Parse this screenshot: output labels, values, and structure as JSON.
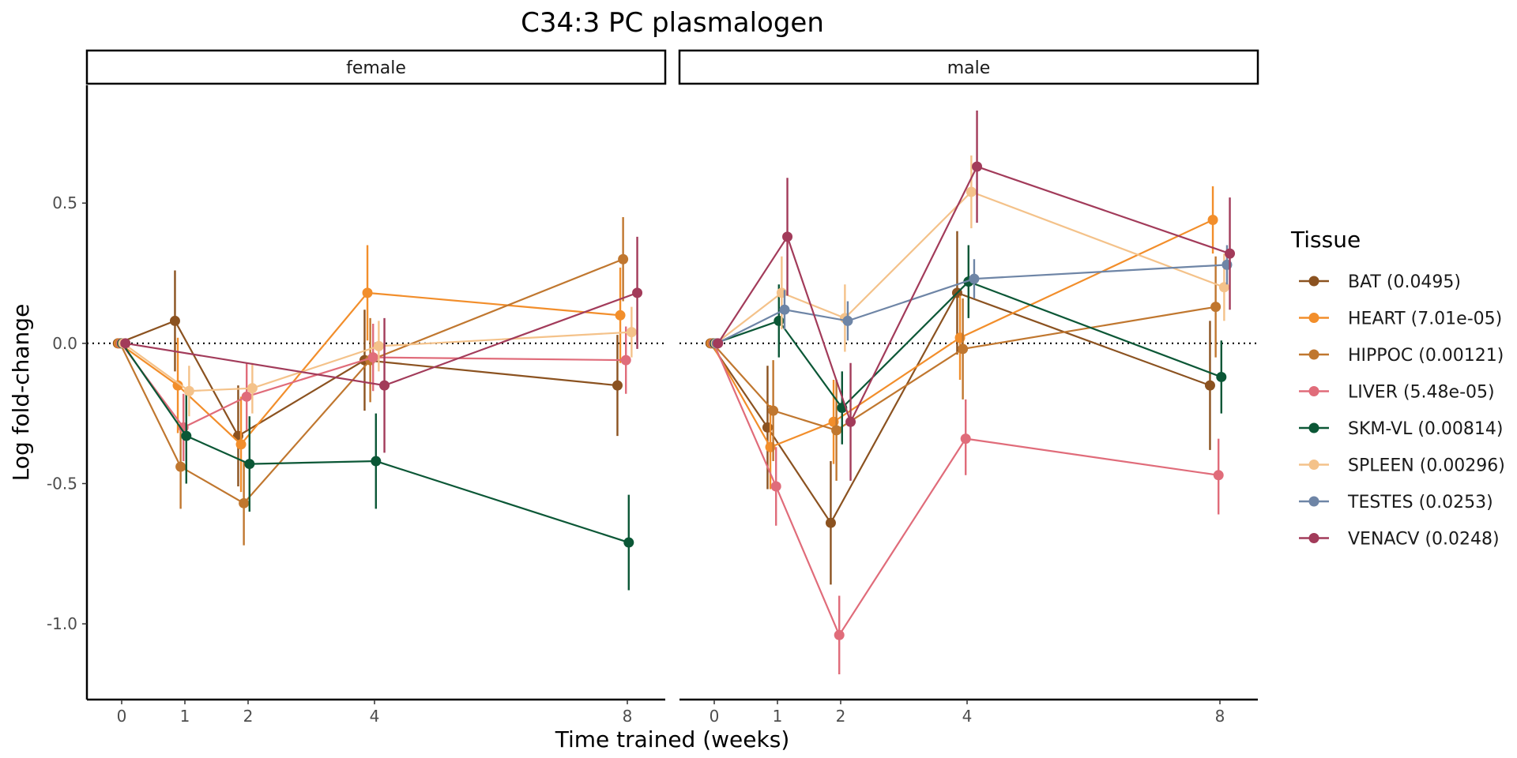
{
  "chart_data": {
    "type": "line",
    "title": "C34:3 PC plasmalogen",
    "xlabel": "Time trained (weeks)",
    "ylabel": "Log fold-change",
    "x_ticks": [
      0,
      1,
      2,
      4,
      8
    ],
    "y_ticks": [
      -1.0,
      -0.5,
      0.0,
      0.5
    ],
    "y_tick_labels": [
      "-1.0",
      "-0.5",
      "0.0",
      "0.5"
    ],
    "ylim": [
      -1.27,
      0.92
    ],
    "xlim": [
      -0.55,
      8.6
    ],
    "reference_line": 0,
    "legend_title": "Tissue",
    "legend_position": "right",
    "panels": [
      {
        "label": "female",
        "series": [
          {
            "name": "BAT (0.0495)",
            "color": "#8B5220",
            "x": [
              0,
              1,
              2,
              4,
              8
            ],
            "y": [
              0.0,
              0.08,
              -0.33,
              -0.06,
              -0.15
            ],
            "lo": [
              0.0,
              -0.1,
              -0.51,
              -0.24,
              -0.33
            ],
            "hi": [
              0.0,
              0.26,
              -0.15,
              0.12,
              0.03
            ]
          },
          {
            "name": "HEART (7.01e-05)",
            "color": "#F28E2B",
            "x": [
              0,
              1,
              2,
              4,
              8
            ],
            "y": [
              0.0,
              -0.15,
              -0.36,
              0.18,
              0.1
            ],
            "lo": [
              0.0,
              -0.32,
              -0.53,
              0.01,
              -0.07
            ],
            "hi": [
              0.0,
              0.02,
              -0.19,
              0.35,
              0.27
            ]
          },
          {
            "name": "HIPPOC (0.00121)",
            "color": "#C0772F",
            "x": [
              0,
              1,
              2,
              4,
              8
            ],
            "y": [
              0.0,
              -0.44,
              -0.57,
              -0.06,
              0.3
            ],
            "lo": [
              0.0,
              -0.59,
              -0.72,
              -0.21,
              0.15
            ],
            "hi": [
              0.0,
              -0.29,
              -0.42,
              0.09,
              0.45
            ]
          },
          {
            "name": "LIVER (5.48e-05)",
            "color": "#E06C7A",
            "x": [
              0,
              1,
              2,
              4,
              8
            ],
            "y": [
              0.0,
              -0.3,
              -0.19,
              -0.05,
              -0.06
            ],
            "lo": [
              0.0,
              -0.42,
              -0.31,
              -0.17,
              -0.18
            ],
            "hi": [
              0.0,
              -0.18,
              -0.07,
              0.07,
              0.06
            ]
          },
          {
            "name": "SKM-VL (0.00814)",
            "color": "#0B5736",
            "x": [
              0,
              1,
              2,
              4,
              8
            ],
            "y": [
              0.0,
              -0.33,
              -0.43,
              -0.42,
              -0.71
            ],
            "lo": [
              0.0,
              -0.5,
              -0.6,
              -0.59,
              -0.88
            ],
            "hi": [
              0.0,
              -0.16,
              -0.26,
              -0.25,
              -0.54
            ]
          },
          {
            "name": "SPLEEN (0.00296)",
            "color": "#F4C28A",
            "x": [
              0,
              1,
              2,
              4,
              8
            ],
            "y": [
              0.0,
              -0.17,
              -0.16,
              -0.01,
              0.04
            ],
            "lo": [
              0.0,
              -0.26,
              -0.25,
              -0.1,
              -0.05
            ],
            "hi": [
              0.0,
              -0.08,
              -0.07,
              0.08,
              0.13
            ]
          },
          {
            "name": "TESTES (0.0253)",
            "color": "#6E85A6",
            "x": [],
            "y": [],
            "lo": [],
            "hi": []
          },
          {
            "name": "VENACV (0.0248)",
            "color": "#A23B5A",
            "x": [
              0,
              4,
              8
            ],
            "y": [
              0.0,
              -0.15,
              0.18
            ],
            "lo": [
              0.0,
              -0.39,
              -0.02
            ],
            "hi": [
              0.0,
              0.09,
              0.38
            ]
          }
        ]
      },
      {
        "label": "male",
        "series": [
          {
            "name": "BAT (0.0495)",
            "color": "#8B5220",
            "x": [
              0,
              1,
              2,
              4,
              8
            ],
            "y": [
              0.0,
              -0.3,
              -0.64,
              0.18,
              -0.15
            ],
            "lo": [
              0.0,
              -0.52,
              -0.86,
              -0.04,
              -0.38
            ],
            "hi": [
              0.0,
              -0.08,
              -0.42,
              0.4,
              0.08
            ]
          },
          {
            "name": "HEART (7.01e-05)",
            "color": "#F28E2B",
            "x": [
              0,
              1,
              2,
              4,
              8
            ],
            "y": [
              0.0,
              -0.37,
              -0.28,
              0.02,
              0.44
            ],
            "lo": [
              0.0,
              -0.52,
              -0.43,
              -0.13,
              0.32
            ],
            "hi": [
              0.0,
              -0.22,
              -0.13,
              0.17,
              0.56
            ]
          },
          {
            "name": "HIPPOC (0.00121)",
            "color": "#C0772F",
            "x": [
              0,
              1,
              2,
              4,
              8
            ],
            "y": [
              0.0,
              -0.24,
              -0.31,
              -0.02,
              0.13
            ],
            "lo": [
              0.0,
              -0.42,
              -0.49,
              -0.2,
              -0.05
            ],
            "hi": [
              0.0,
              -0.06,
              -0.13,
              0.16,
              0.31
            ]
          },
          {
            "name": "LIVER (5.48e-05)",
            "color": "#E06C7A",
            "x": [
              0,
              1,
              2,
              4,
              8
            ],
            "y": [
              0.0,
              -0.51,
              -1.04,
              -0.34,
              -0.47
            ],
            "lo": [
              0.0,
              -0.65,
              -1.18,
              -0.47,
              -0.61
            ],
            "hi": [
              0.0,
              -0.37,
              -0.9,
              -0.2,
              -0.34
            ]
          },
          {
            "name": "SKM-VL (0.00814)",
            "color": "#0B5736",
            "x": [
              0,
              1,
              2,
              4,
              8
            ],
            "y": [
              0.0,
              0.08,
              -0.23,
              0.22,
              -0.12
            ],
            "lo": [
              0.0,
              -0.05,
              -0.36,
              0.09,
              -0.25
            ],
            "hi": [
              0.0,
              0.21,
              -0.1,
              0.35,
              0.01
            ]
          },
          {
            "name": "SPLEEN (0.00296)",
            "color": "#F4C28A",
            "x": [
              0,
              1,
              2,
              4,
              8
            ],
            "y": [
              0.0,
              0.18,
              0.09,
              0.54,
              0.2
            ],
            "lo": [
              0.0,
              0.05,
              -0.03,
              0.41,
              0.08
            ],
            "hi": [
              0.0,
              0.31,
              0.21,
              0.67,
              0.32
            ]
          },
          {
            "name": "TESTES (0.0253)",
            "color": "#6E85A6",
            "x": [
              0,
              1,
              2,
              4,
              8
            ],
            "y": [
              0.0,
              0.12,
              0.08,
              0.23,
              0.28
            ],
            "lo": [
              0.0,
              0.05,
              0.01,
              0.16,
              0.21
            ],
            "hi": [
              0.0,
              0.19,
              0.15,
              0.3,
              0.35
            ]
          },
          {
            "name": "VENACV (0.0248)",
            "color": "#A23B5A",
            "x": [
              0,
              1,
              2,
              4,
              8
            ],
            "y": [
              0.0,
              0.38,
              -0.28,
              0.63,
              0.32
            ],
            "lo": [
              0.0,
              0.17,
              -0.49,
              0.43,
              0.12
            ],
            "hi": [
              0.0,
              0.59,
              -0.07,
              0.83,
              0.52
            ]
          }
        ]
      }
    ]
  }
}
